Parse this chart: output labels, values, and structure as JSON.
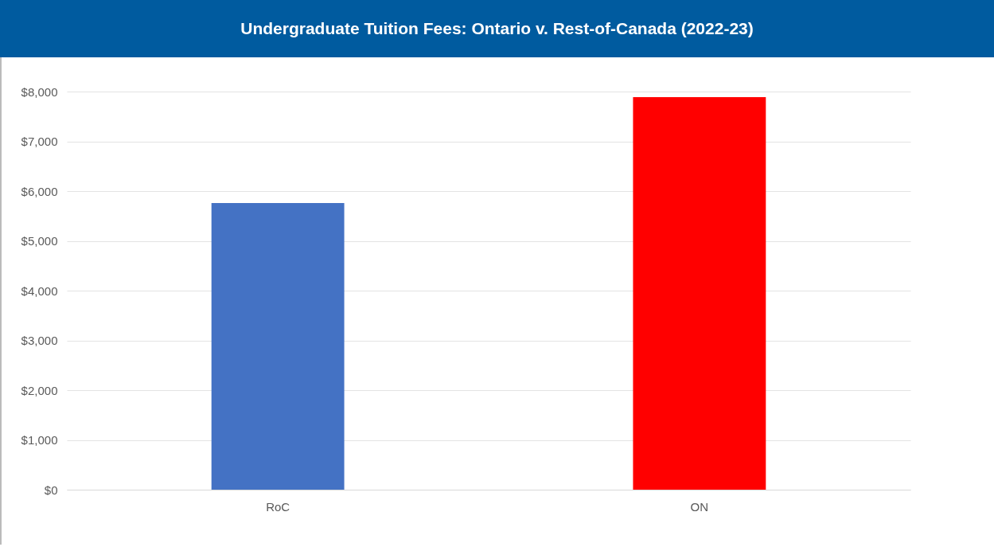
{
  "chart_data": {
    "type": "bar",
    "title": "Undergraduate Tuition Fees: Ontario v. Rest-of-Canada (2022-23)",
    "categories": [
      "RoC",
      "ON"
    ],
    "values": [
      5760,
      7890
    ],
    "colors": [
      "#4472c4",
      "#ff0000"
    ],
    "ylim": [
      0,
      8000
    ],
    "yticks": [
      {
        "value": 0,
        "label": "$0"
      },
      {
        "value": 1000,
        "label": "$1,000"
      },
      {
        "value": 2000,
        "label": "$2,000"
      },
      {
        "value": 3000,
        "label": "$3,000"
      },
      {
        "value": 4000,
        "label": "$4,000"
      },
      {
        "value": 5000,
        "label": "$5,000"
      },
      {
        "value": 6000,
        "label": "$6,000"
      },
      {
        "value": 7000,
        "label": "$7,000"
      },
      {
        "value": 8000,
        "label": "$8,000"
      }
    ],
    "grid": "y"
  }
}
